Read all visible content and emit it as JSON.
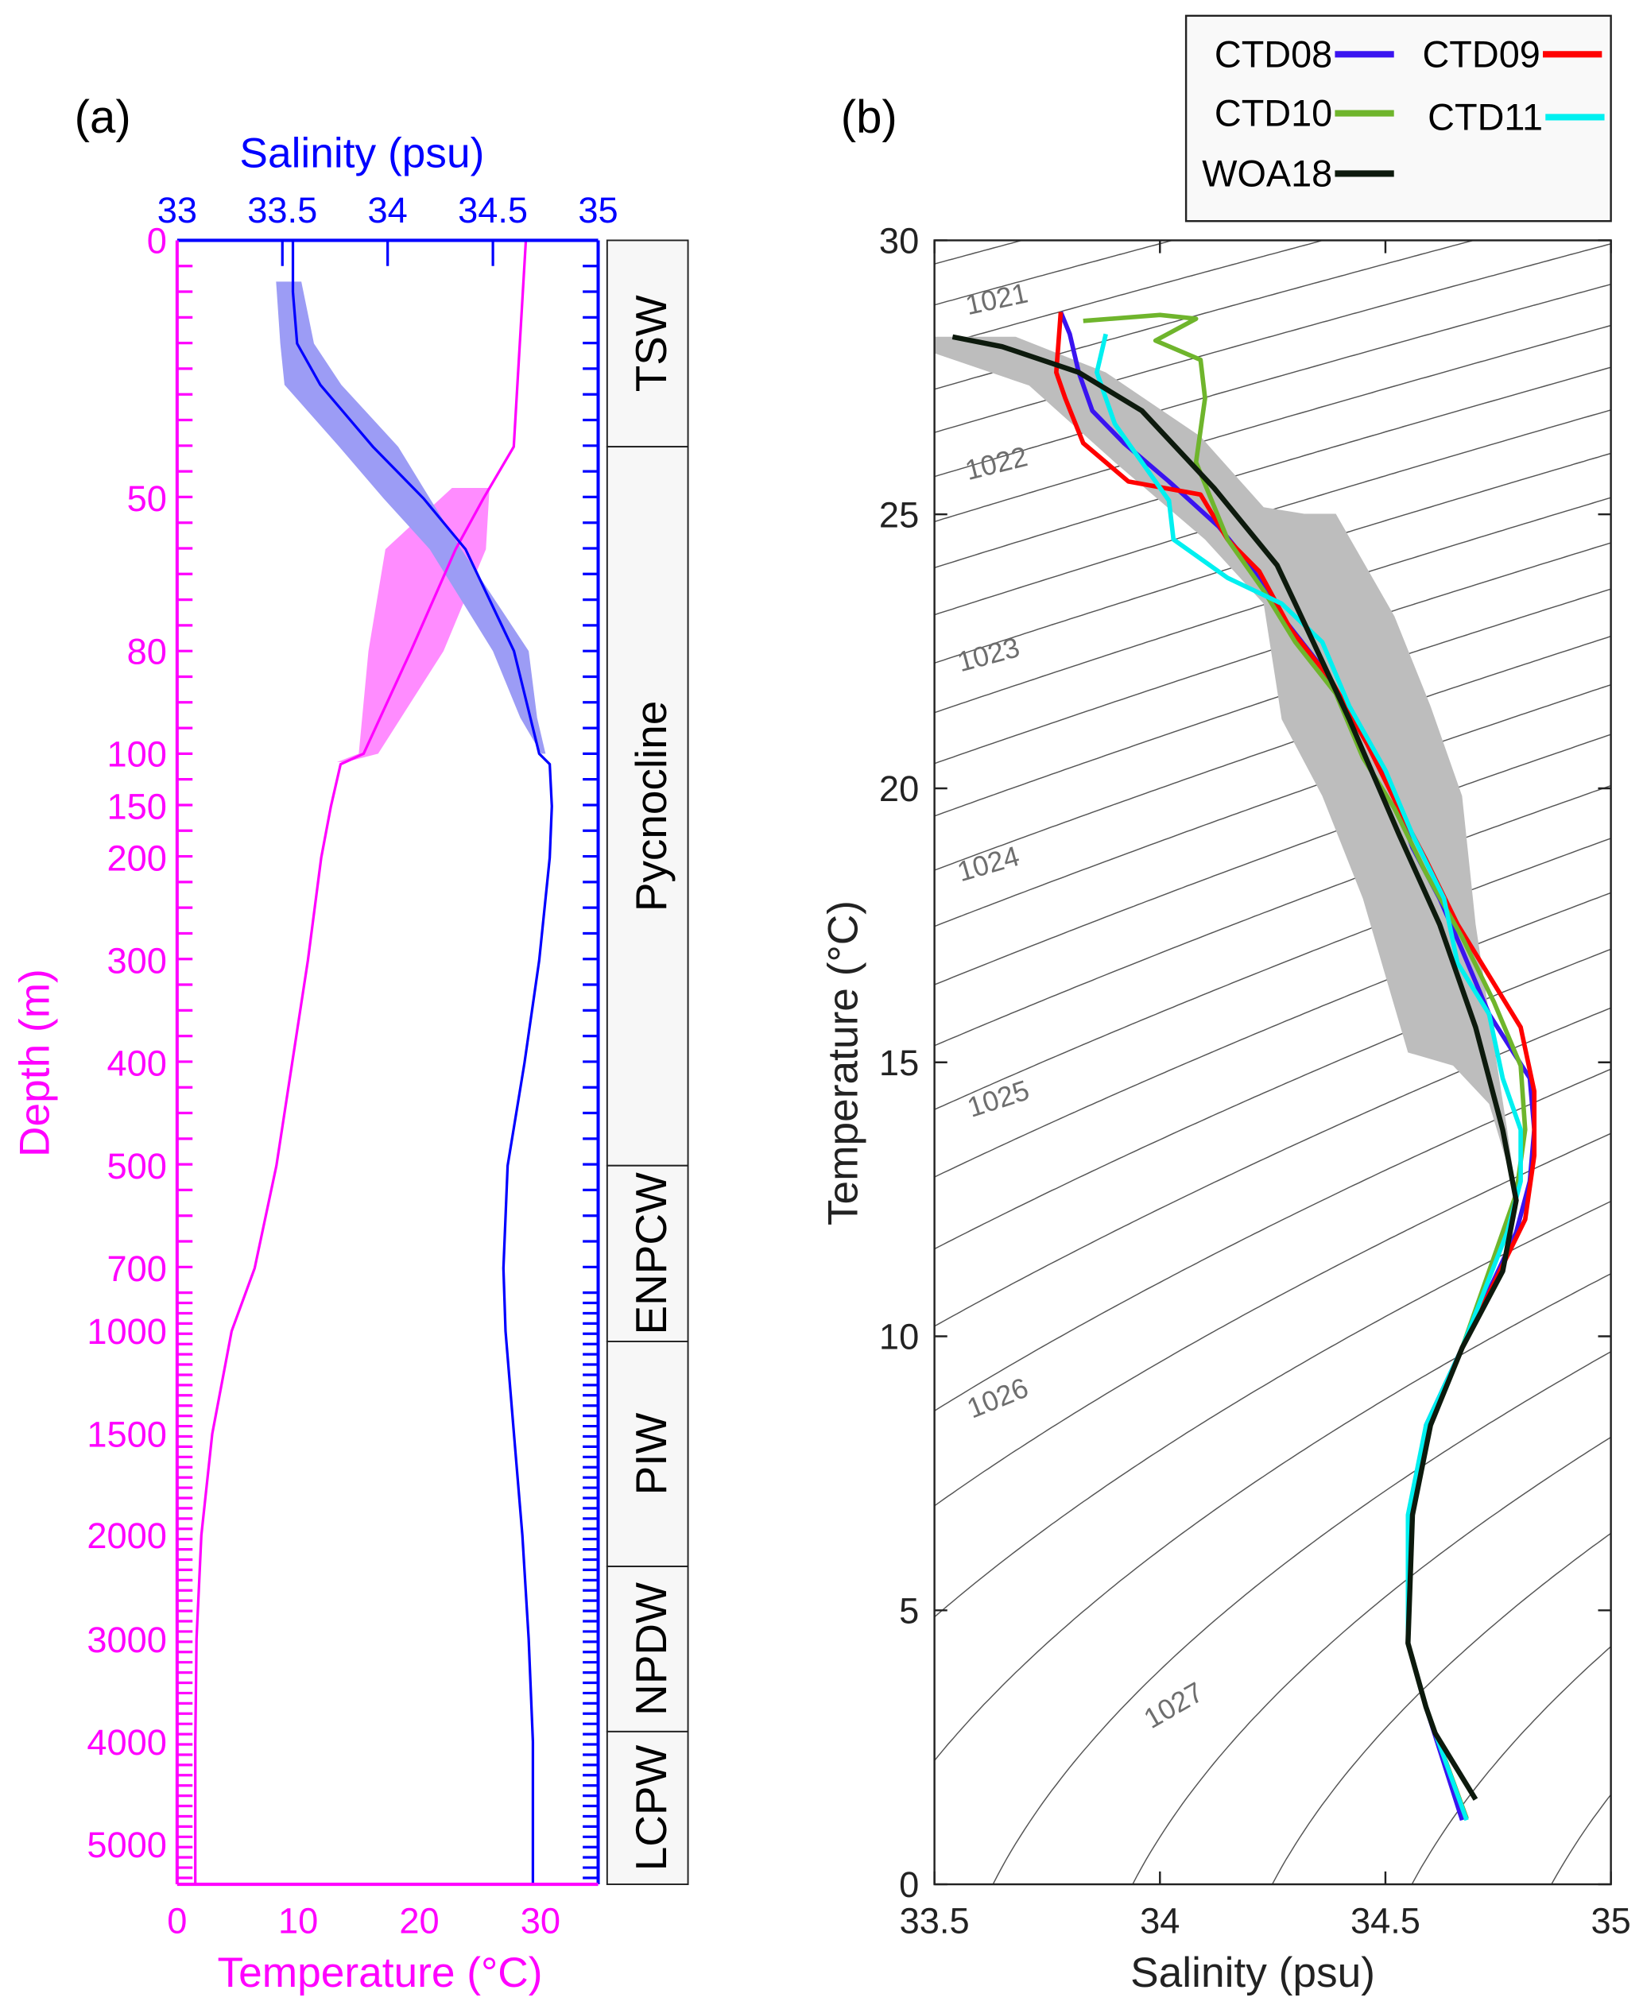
{
  "chart_data": [
    {
      "id": "a",
      "type": "line",
      "panel_label": "(a)",
      "top_axis": {
        "label": "Salinity (psu)",
        "range": [
          33,
          35
        ],
        "ticks": [
          "33",
          "33.5",
          "34",
          "34.5",
          "35"
        ],
        "tick_values": [
          33,
          33.5,
          34,
          34.5,
          35
        ],
        "color": "#0000ff"
      },
      "bottom_axis": {
        "label": "Temperature (°C)",
        "range": [
          0,
          35
        ],
        "ticks": [
          "0",
          "10",
          "20",
          "30"
        ],
        "tick_values": [
          0,
          10,
          20,
          30
        ],
        "color": "#ff00ff"
      },
      "left_axis": {
        "label": "Depth (m)",
        "scale": "piecewise (stretched upper ocean)",
        "ticks": [
          "0",
          "50",
          "80",
          "100",
          "150",
          "200",
          "300",
          "400",
          "500",
          "700",
          "1000",
          "1500",
          "2000",
          "3000",
          "4000",
          "5000"
        ],
        "tick_values": [
          0,
          50,
          80,
          100,
          150,
          200,
          300,
          400,
          500,
          700,
          1000,
          1500,
          2000,
          3000,
          4000,
          5000
        ],
        "color": "#ff00ff"
      },
      "series": [
        {
          "name": "Temperature",
          "color": "#ff00ff",
          "depth": [
            0,
            40,
            50,
            60,
            80,
            100,
            110,
            150,
            200,
            300,
            400,
            500,
            700,
            1000,
            1500,
            2000,
            3000,
            4000,
            5400
          ],
          "values": [
            28.8,
            27.8,
            25.3,
            23.0,
            19.3,
            15.4,
            13.5,
            12.7,
            11.9,
            10.8,
            9.5,
            8.2,
            6.4,
            4.5,
            2.9,
            2.0,
            1.6,
            1.5,
            1.5
          ],
          "band_depth": [
            48,
            60,
            80,
            100,
            108
          ],
          "band_min": [
            22.7,
            17.2,
            15.8,
            15.0,
            13.2
          ],
          "band_max": [
            25.8,
            25.5,
            22.0,
            16.6,
            13.9
          ]
        },
        {
          "name": "Salinity",
          "color": "#0000ff",
          "depth": [
            0,
            10,
            20,
            28,
            40,
            50,
            60,
            80,
            100,
            110,
            150,
            200,
            300,
            400,
            500,
            700,
            1000,
            1500,
            2000,
            3000,
            4000,
            5400
          ],
          "values": [
            33.55,
            33.55,
            33.57,
            33.68,
            33.93,
            34.17,
            34.37,
            34.6,
            34.72,
            34.77,
            34.78,
            34.77,
            34.72,
            34.65,
            34.57,
            34.55,
            34.56,
            34.6,
            34.64,
            34.67,
            34.69,
            34.69
          ],
          "band_depth": [
            8,
            20,
            28,
            40,
            50,
            60,
            80,
            93,
            100
          ],
          "band_min": [
            33.47,
            33.49,
            33.51,
            33.77,
            33.98,
            34.2,
            34.5,
            34.63,
            34.73
          ],
          "band_max": [
            33.59,
            33.65,
            33.78,
            34.05,
            34.2,
            34.35,
            34.67,
            34.71,
            34.75
          ]
        }
      ],
      "water_masses": [
        {
          "name": "TSW",
          "top": 0,
          "bottom": 40
        },
        {
          "name": "Pycnocline",
          "top": 40,
          "bottom": 500
        },
        {
          "name": "ENPCW",
          "top": 500,
          "bottom": 1050
        },
        {
          "name": "PIW",
          "top": 1050,
          "bottom": 2300
        },
        {
          "name": "NPDW",
          "top": 2300,
          "bottom": 3900
        },
        {
          "name": "LCPW",
          "top": 3900,
          "bottom": 5400
        }
      ]
    },
    {
      "id": "b",
      "type": "line",
      "panel_label": "(b)",
      "xlabel": "Salinity (psu)",
      "ylabel": "Temperature (°C)",
      "xlim": [
        33.5,
        35
      ],
      "ylim": [
        0,
        30
      ],
      "xticks": [
        "33.5",
        "34",
        "34.5",
        "35"
      ],
      "xtick_values": [
        33.5,
        34,
        34.5,
        35
      ],
      "yticks": [
        "0",
        "5",
        "10",
        "15",
        "20",
        "25",
        "30"
      ],
      "ytick_values": [
        0,
        5,
        10,
        15,
        20,
        25,
        30
      ],
      "isopycnals": {
        "levels_from": 1020.5,
        "levels_to": 1028.5,
        "step": 0.25,
        "labels": [
          "1021",
          "1022",
          "1023",
          "1024",
          "1025",
          "1026",
          "1027"
        ],
        "color": "#555555"
      },
      "legend": {
        "placement": "top-right",
        "entries": [
          "CTD08",
          "CTD09",
          "CTD10",
          "CTD11",
          "WOA18"
        ]
      },
      "woa18_envelope": [
        [
          33.5,
          28.24
        ],
        [
          33.68,
          28.24
        ],
        [
          33.88,
          27.59
        ],
        [
          34.09,
          26.42
        ],
        [
          34.23,
          25.13
        ],
        [
          34.32,
          25.01
        ],
        [
          34.39,
          25.01
        ],
        [
          34.52,
          23.14
        ],
        [
          34.6,
          21.5
        ],
        [
          34.67,
          19.86
        ],
        [
          34.7,
          17.52
        ],
        [
          34.73,
          15.88
        ],
        [
          34.77,
          13.77
        ],
        [
          34.79,
          12.6
        ],
        [
          34.73,
          14.24
        ],
        [
          34.65,
          14.94
        ],
        [
          34.55,
          15.18
        ],
        [
          34.5,
          16.58
        ],
        [
          34.45,
          17.99
        ],
        [
          34.36,
          19.86
        ],
        [
          34.27,
          21.26
        ],
        [
          34.23,
          23.37
        ],
        [
          34.1,
          24.54
        ],
        [
          33.9,
          25.95
        ],
        [
          33.71,
          27.35
        ],
        [
          33.5,
          27.94
        ]
      ],
      "series": [
        {
          "name": "CTD08",
          "color": "#3a14f0",
          "points": [
            [
              33.78,
              28.69
            ],
            [
              33.8,
              28.29
            ],
            [
              33.82,
              27.59
            ],
            [
              33.85,
              26.89
            ],
            [
              33.92,
              26.3
            ],
            [
              34.02,
              25.6
            ],
            [
              34.13,
              24.78
            ],
            [
              34.2,
              24.07
            ],
            [
              34.27,
              23.14
            ],
            [
              34.36,
              22.2
            ],
            [
              34.45,
              21.03
            ],
            [
              34.52,
              19.86
            ],
            [
              34.56,
              18.92
            ],
            [
              34.62,
              17.99
            ],
            [
              34.67,
              17.05
            ],
            [
              34.73,
              15.88
            ],
            [
              34.82,
              14.71
            ],
            [
              34.83,
              13.77
            ],
            [
              34.82,
              12.83
            ],
            [
              34.79,
              11.9
            ],
            [
              34.67,
              9.79
            ],
            [
              34.59,
              8.38
            ],
            [
              34.56,
              6.74
            ],
            [
              34.55,
              4.4
            ],
            [
              34.59,
              3.23
            ],
            [
              34.67,
              1.17
            ]
          ]
        },
        {
          "name": "CTD09",
          "color": "#ff0000",
          "points": [
            [
              33.78,
              28.69
            ],
            [
              33.77,
              27.59
            ],
            [
              33.79,
              27.12
            ],
            [
              33.83,
              26.3
            ],
            [
              33.93,
              25.6
            ],
            [
              34.09,
              25.36
            ],
            [
              34.15,
              24.54
            ],
            [
              34.22,
              23.96
            ],
            [
              34.29,
              22.9
            ],
            [
              34.38,
              21.97
            ],
            [
              34.46,
              20.8
            ],
            [
              34.53,
              19.63
            ],
            [
              34.59,
              18.69
            ],
            [
              34.66,
              17.52
            ],
            [
              34.73,
              16.58
            ],
            [
              34.8,
              15.64
            ],
            [
              34.83,
              14.47
            ],
            [
              34.83,
              13.3
            ],
            [
              34.81,
              12.13
            ],
            [
              34.67,
              9.79
            ],
            [
              34.6,
              8.38
            ],
            [
              34.56,
              6.74
            ],
            [
              34.55,
              4.4
            ],
            [
              34.59,
              3.23
            ],
            [
              34.68,
              1.2
            ]
          ]
        },
        {
          "name": "CTD10",
          "color": "#6fb52c",
          "points": [
            [
              33.83,
              28.53
            ],
            [
              34.0,
              28.64
            ],
            [
              34.08,
              28.57
            ],
            [
              33.99,
              28.17
            ],
            [
              34.09,
              27.82
            ],
            [
              34.1,
              27.12
            ],
            [
              34.08,
              25.95
            ],
            [
              34.15,
              24.54
            ],
            [
              34.23,
              23.61
            ],
            [
              34.3,
              22.67
            ],
            [
              34.39,
              21.73
            ],
            [
              34.45,
              20.56
            ],
            [
              34.52,
              19.63
            ],
            [
              34.59,
              18.45
            ],
            [
              34.67,
              17.28
            ],
            [
              34.74,
              16.11
            ],
            [
              34.8,
              14.94
            ],
            [
              34.81,
              13.77
            ],
            [
              34.79,
              12.6
            ],
            [
              34.67,
              9.79
            ],
            [
              34.6,
              8.38
            ],
            [
              34.56,
              6.74
            ],
            [
              34.55,
              4.4
            ],
            [
              34.59,
              3.23
            ],
            [
              34.68,
              1.2
            ]
          ]
        },
        {
          "name": "CTD11",
          "color": "#00f0f0",
          "points": [
            [
              33.88,
              28.29
            ],
            [
              33.86,
              27.59
            ],
            [
              33.9,
              26.65
            ],
            [
              33.96,
              25.95
            ],
            [
              34.02,
              25.25
            ],
            [
              34.03,
              24.54
            ],
            [
              34.15,
              23.84
            ],
            [
              34.27,
              23.37
            ],
            [
              34.36,
              22.67
            ],
            [
              34.42,
              21.5
            ],
            [
              34.5,
              20.33
            ],
            [
              34.56,
              19.16
            ],
            [
              34.63,
              17.99
            ],
            [
              34.66,
              16.81
            ],
            [
              34.73,
              15.88
            ],
            [
              34.76,
              14.71
            ],
            [
              34.8,
              13.77
            ],
            [
              34.8,
              12.83
            ],
            [
              34.77,
              11.9
            ],
            [
              34.67,
              9.79
            ],
            [
              34.59,
              8.38
            ],
            [
              34.55,
              6.74
            ],
            [
              34.55,
              4.4
            ],
            [
              34.59,
              3.23
            ],
            [
              34.68,
              1.17
            ]
          ]
        },
        {
          "name": "WOA18",
          "color": "#0d1a0d",
          "points": [
            [
              33.54,
              28.24
            ],
            [
              33.65,
              28.06
            ],
            [
              33.82,
              27.59
            ],
            [
              33.96,
              26.89
            ],
            [
              34.12,
              25.48
            ],
            [
              34.26,
              24.07
            ],
            [
              34.3,
              23.37
            ],
            [
              34.42,
              21.26
            ],
            [
              34.53,
              19.16
            ],
            [
              34.62,
              17.52
            ],
            [
              34.7,
              15.64
            ],
            [
              34.76,
              13.77
            ],
            [
              34.79,
              12.48
            ],
            [
              34.76,
              11.19
            ],
            [
              34.67,
              9.79
            ],
            [
              34.6,
              8.38
            ],
            [
              34.56,
              6.74
            ],
            [
              34.55,
              4.4
            ],
            [
              34.59,
              3.23
            ],
            [
              34.61,
              2.76
            ],
            [
              34.7,
              1.55
            ]
          ]
        }
      ]
    }
  ]
}
